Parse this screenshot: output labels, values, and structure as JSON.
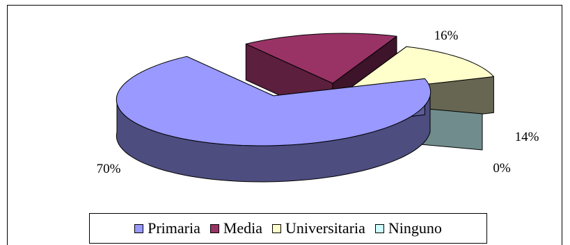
{
  "chart_data": {
    "type": "pie",
    "style": "3d-exploded",
    "title": "",
    "categories": [
      "Primaria",
      "Media",
      "Universitaria",
      "Ninguno"
    ],
    "values": [
      70,
      16,
      14,
      0
    ],
    "labels": [
      "70%",
      "16%",
      "14%",
      "0%"
    ],
    "colors": [
      "#9999ff",
      "#993366",
      "#ffffcc",
      "#ccffff"
    ],
    "legend": "bottom"
  }
}
